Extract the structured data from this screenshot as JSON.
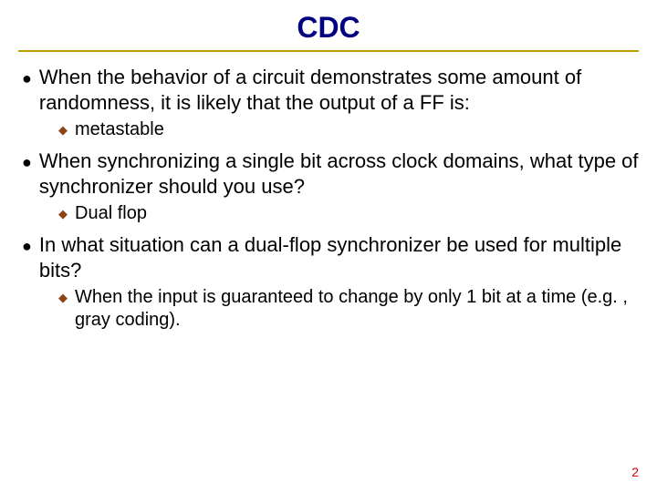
{
  "title": "CDC",
  "title_color": "#000080",
  "rule_color": "#b8a000",
  "bullet_l1_marker_color": "#000000",
  "bullet_l2_marker_color": "#8b4513",
  "page_number_color": "#cc0000",
  "background_color": "#ffffff",
  "items": [
    {
      "level": 1,
      "text": "When the behavior of a circuit demonstrates some amount of randomness, it is likely that the output of a FF is:"
    },
    {
      "level": 2,
      "text": "metastable"
    },
    {
      "level": 1,
      "text": "When synchronizing a single bit across clock domains, what type of synchronizer should you use?"
    },
    {
      "level": 2,
      "text": "Dual flop"
    },
    {
      "level": 1,
      "text": "In what situation can a dual-flop synchronizer be used for multiple bits?"
    },
    {
      "level": 2,
      "text": "When the input is guaranteed to change by only 1 bit at a time (e.g. , gray coding)."
    }
  ],
  "page_number": "2"
}
